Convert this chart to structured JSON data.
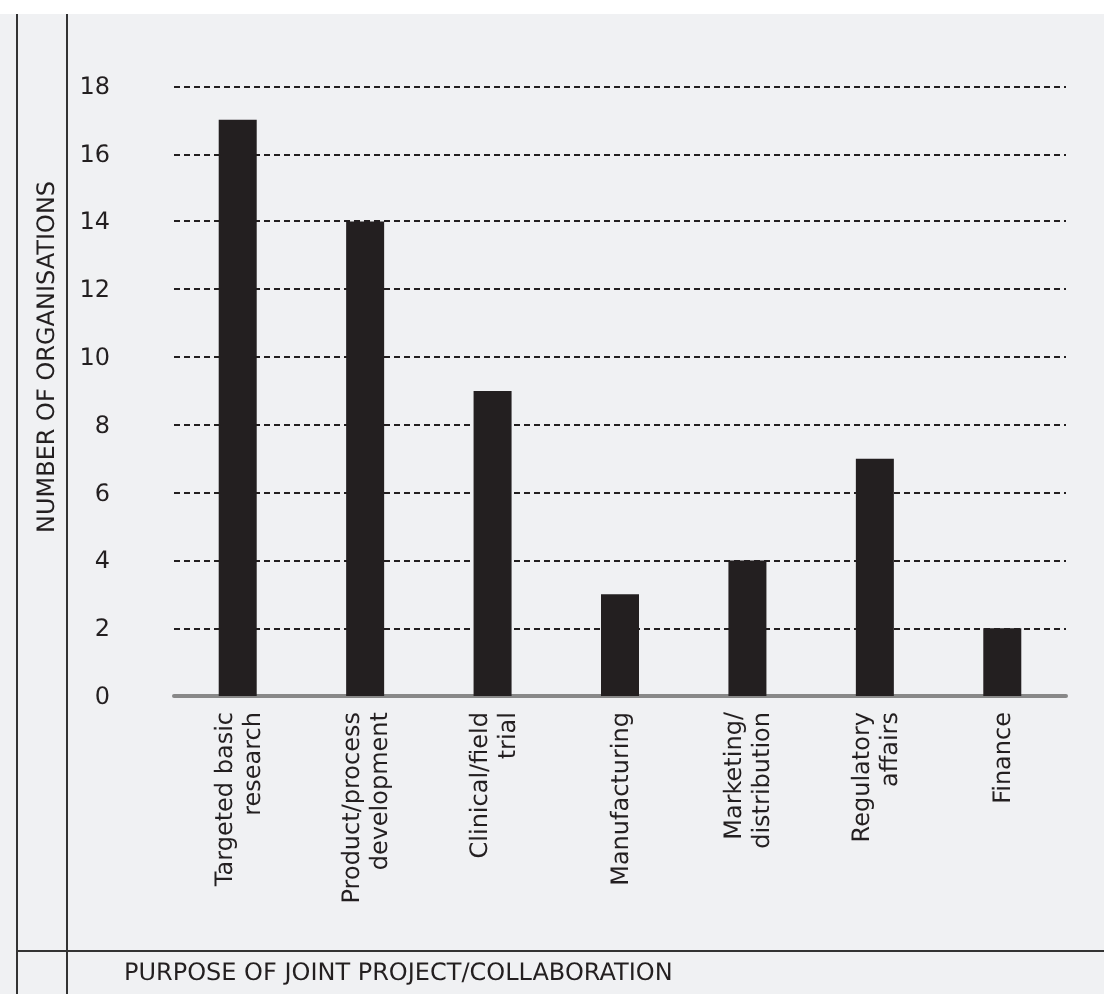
{
  "chart_data": {
    "type": "bar",
    "xlabel": "PURPOSE OF JOINT PROJECT/COLLABORATION",
    "ylabel": "NUMBER OF ORGANISATIONS",
    "categories": [
      "Targeted basic\nresearch",
      "Product/process\ndevelopment",
      "Clinical/field\ntrial",
      "Manufacturing",
      "Marketing/\ndistribution",
      "Regulatory\naffairs",
      "Finance"
    ],
    "values": [
      17,
      14,
      9,
      3,
      4,
      7,
      2
    ],
    "color": "#231f20",
    "ylim": [
      0,
      20
    ],
    "yticks": [
      0,
      2,
      4,
      6,
      8,
      10,
      12,
      14,
      16,
      18
    ],
    "grid": "y"
  }
}
